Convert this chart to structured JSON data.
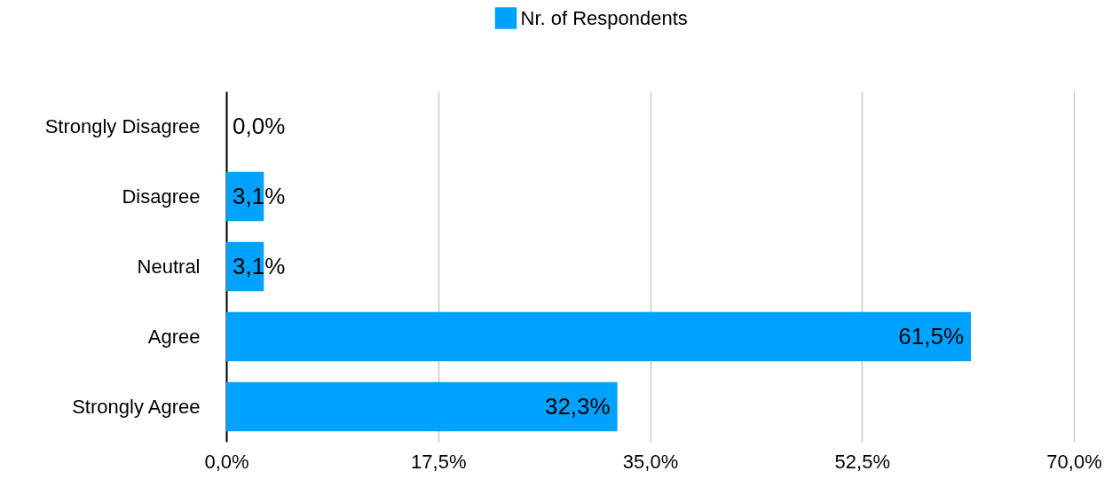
{
  "chart_data": {
    "type": "bar",
    "orientation": "horizontal",
    "categories": [
      "Strongly Disagree",
      "Disagree",
      "Neutral",
      "Agree",
      "Strongly Agree"
    ],
    "series": [
      {
        "name": "Nr. of Respondents",
        "color": "#00a2ff",
        "values": [
          0,
          3.1,
          3.1,
          61.5,
          32.3
        ],
        "value_labels": [
          "0,0%",
          "3,1%",
          "3,1%",
          "61,5%",
          "32,3%"
        ]
      }
    ],
    "xlim": [
      0,
      70
    ],
    "xticks": [
      {
        "value": 0,
        "label": "0,0%"
      },
      {
        "value": 17.5,
        "label": "17,5%"
      },
      {
        "value": 35,
        "label": "35,0%"
      },
      {
        "value": 52.5,
        "label": "52,5%"
      },
      {
        "value": 70,
        "label": "70,0%"
      }
    ],
    "grid": "x",
    "legend": "top"
  }
}
